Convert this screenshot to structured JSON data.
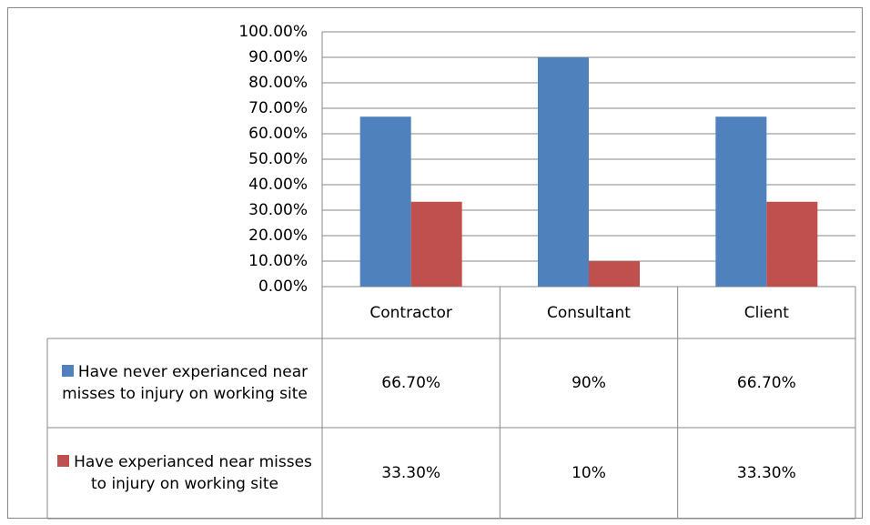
{
  "chart_data": {
    "type": "bar",
    "categories": [
      "Contractor",
      "Consultant",
      "Client"
    ],
    "series": [
      {
        "name": "Have never experianced near misses to injury on working site",
        "color": "#4f81bd",
        "values": [
          66.7,
          90,
          66.7
        ],
        "value_labels": [
          "66.70%",
          "90%",
          "66.70%"
        ]
      },
      {
        "name": "Have experianced  near misses to injury on working site",
        "color": "#c0504d",
        "values": [
          33.3,
          10,
          33.3
        ],
        "value_labels": [
          "33.30%",
          "10%",
          "33.30%"
        ]
      }
    ],
    "ylim": [
      0,
      100
    ],
    "yticks": [
      {
        "value": 0,
        "label": "0.00%"
      },
      {
        "value": 10,
        "label": "10.00%"
      },
      {
        "value": 20,
        "label": "20.00%"
      },
      {
        "value": 30,
        "label": "30.00%"
      },
      {
        "value": 40,
        "label": "40.00%"
      },
      {
        "value": 50,
        "label": "50.00%"
      },
      {
        "value": 60,
        "label": "60.00%"
      },
      {
        "value": 70,
        "label": "70.00%"
      },
      {
        "value": 80,
        "label": "80.00%"
      },
      {
        "value": 90,
        "label": "90.00%"
      },
      {
        "value": 100,
        "label": "100.00%"
      }
    ],
    "grid": true,
    "legend": "table"
  }
}
